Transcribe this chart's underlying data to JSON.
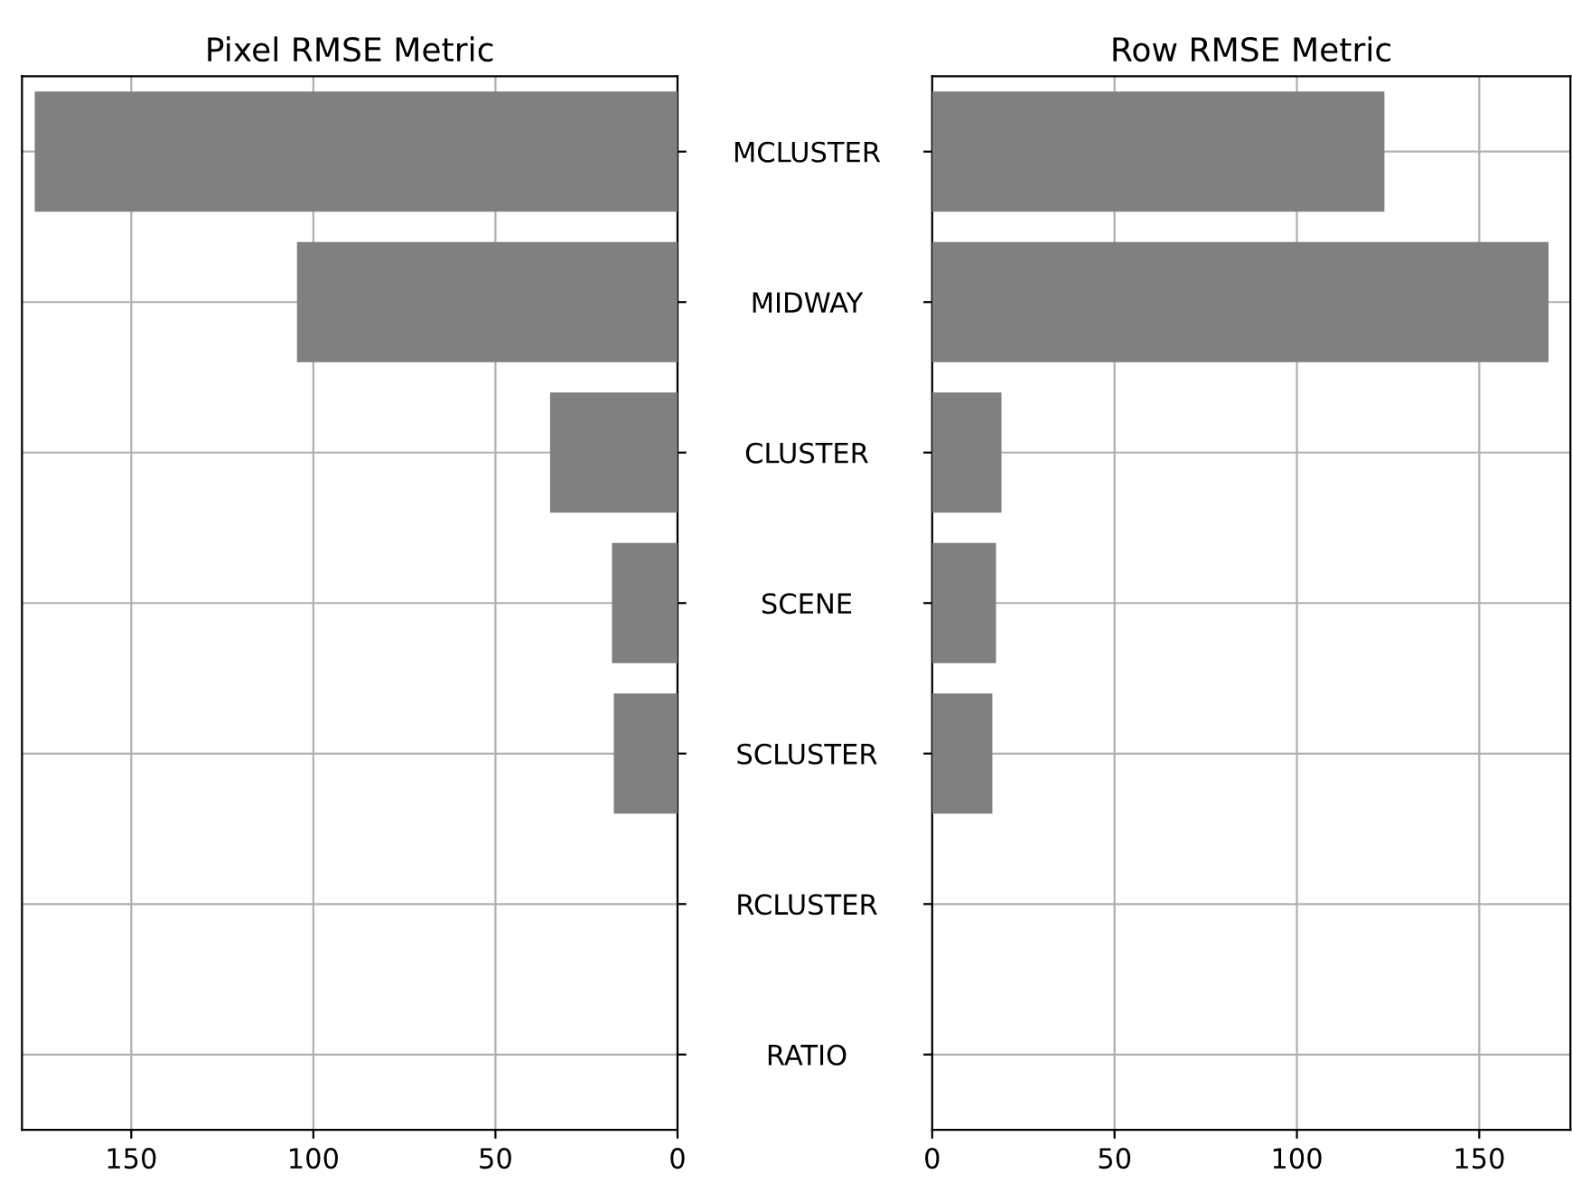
{
  "chart_data": [
    {
      "type": "bar",
      "orientation": "horizontal",
      "title": "Pixel RMSE Metric",
      "categories": [
        "MCLUSTER",
        "MIDWAY",
        "CLUSTER",
        "SCENE",
        "SCLUSTER",
        "RCLUSTER",
        "RATIO"
      ],
      "series": [
        {
          "color": "#808080",
          "values": [
            176.5,
            104.5,
            35,
            18,
            17.5,
            0,
            0
          ]
        }
      ],
      "xlim": [
        180,
        0
      ],
      "xticks": [
        150,
        100,
        50,
        0
      ],
      "grid": true
    },
    {
      "type": "bar",
      "orientation": "horizontal",
      "title": "Row RMSE Metric",
      "categories": [
        null,
        null,
        null,
        null,
        null,
        null,
        null
      ],
      "series": [
        {
          "color": "#808080",
          "values": [
            124,
            169,
            19,
            17.5,
            16.5,
            0,
            0
          ]
        }
      ],
      "xlim": [
        0,
        175
      ],
      "xticks": [
        0,
        50,
        100,
        150
      ],
      "grid": true,
      "tick_labels": "x"
    }
  ]
}
